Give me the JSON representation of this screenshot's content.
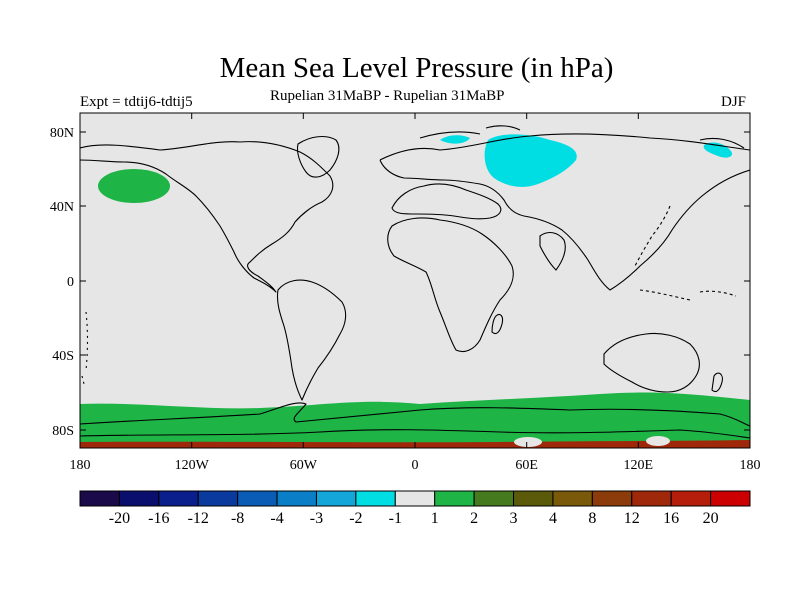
{
  "title": "Mean Sea Level Pressure (in hPa)",
  "subtitle_left": "Expt = tdtij6-tdtij5",
  "subtitle_center": "Rupelian  31MaBP - Rupelian  31MaBP",
  "subtitle_right": "DJF",
  "y_ticks": [
    "80N",
    "40N",
    "0",
    "40S",
    "80S"
  ],
  "x_ticks": [
    "180",
    "120W",
    "60W",
    "0",
    "60E",
    "120E",
    "180"
  ],
  "colorbar": {
    "colors": [
      "#1a0a4a",
      "#0a0f6e",
      "#0a1e8c",
      "#0a3a9e",
      "#0a5cb4",
      "#0a7ec6",
      "#14a6d8",
      "#00dde3",
      "#e6e6e6",
      "#1eb446",
      "#467a1e",
      "#5a5a0a",
      "#7a5a0a",
      "#8c3c0a",
      "#a0280a",
      "#b41e0a",
      "#cc0000"
    ],
    "labels": [
      "-20",
      "-16",
      "-12",
      "-8",
      "-4",
      "-3",
      "-2",
      "-1",
      "1",
      "2",
      "3",
      "4",
      "8",
      "12",
      "16",
      "20"
    ]
  },
  "colors": {
    "background": "#e6e6e6",
    "negative_cyan": "#00dde3",
    "positive_green": "#1eb446",
    "positive_darkred": "#a0280a",
    "frame": "#000000"
  }
}
